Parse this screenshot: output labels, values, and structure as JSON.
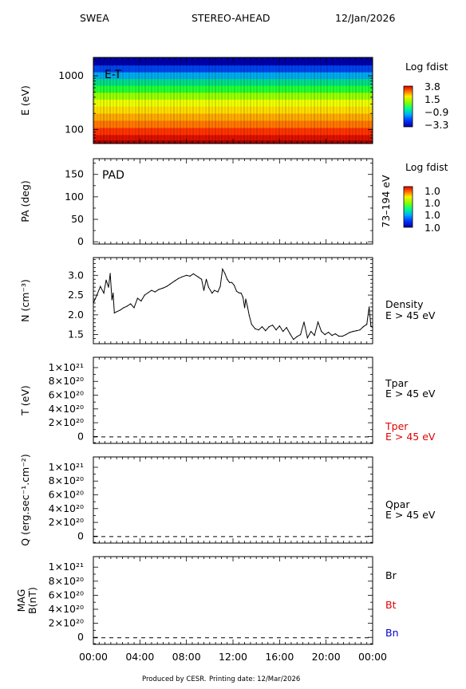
{
  "header": {
    "instrument": "SWEA",
    "spacecraft": "STEREO-AHEAD",
    "date": "12/Jan/2026"
  },
  "footer": {
    "produced_by": "Produced by CESR.",
    "printing_date": "Printing date: 12/Mar/2026"
  },
  "colors": {
    "black": "#000000",
    "tper": "#e00000",
    "bt": "#e00000",
    "bn": "#0000cc"
  },
  "time_axis": {
    "ticks": [
      "00:00",
      "04:00",
      "08:00",
      "12:00",
      "16:00",
      "20:00",
      "00:00"
    ],
    "range_hours": [
      0,
      24
    ]
  },
  "chart_data": [
    {
      "type": "heatmap",
      "panel": "E-T",
      "label": "E-T",
      "ylabel": "E (eV)",
      "yscale": "log",
      "ylim": [
        55,
        2200
      ],
      "yticks": [
        "1000",
        "100"
      ],
      "colorbar": {
        "title": "Log fdist",
        "ticks": [
          "3.8",
          "1.5",
          "−0.9",
          "−3.3"
        ]
      },
      "energy_bands": [
        {
          "energy_ev": 1800,
          "color": "#0000aa"
        },
        {
          "energy_ev": 1350,
          "color": "#0044ee"
        },
        {
          "energy_ev": 1000,
          "color": "#00aaee"
        },
        {
          "energy_ev": 760,
          "color": "#00dd88"
        },
        {
          "energy_ev": 560,
          "color": "#22ff33"
        },
        {
          "energy_ev": 420,
          "color": "#99ff00"
        },
        {
          "energy_ev": 310,
          "color": "#eeff00"
        },
        {
          "energy_ev": 230,
          "color": "#ffdd00"
        },
        {
          "energy_ev": 170,
          "color": "#ffaa00"
        },
        {
          "energy_ev": 125,
          "color": "#ff7700"
        },
        {
          "energy_ev": 92,
          "color": "#ff3300"
        },
        {
          "energy_ev": 68,
          "color": "#dd1100"
        },
        {
          "energy_ev": 58,
          "color": "#aa0000"
        }
      ]
    },
    {
      "type": "heatmap",
      "panel": "PAD",
      "label": "PAD",
      "ylabel": "PA (deg)",
      "ylim": [
        -5,
        185
      ],
      "yticks": [
        "150",
        "100",
        "50",
        "0"
      ],
      "right_label": "73–194 eV",
      "colorbar": {
        "title": "Log fdist",
        "ticks": [
          "1.0",
          "1.0",
          "1.0",
          "1.0"
        ]
      }
    },
    {
      "type": "line",
      "panel": "Density",
      "ylabel": "N (cm⁻³)",
      "ylim": [
        1.27,
        3.45
      ],
      "yticks": [
        "3.0",
        "2.5",
        "2.0",
        "1.5"
      ],
      "series": [
        {
          "name": "Density E > 45 eV",
          "x": [
            0,
            0.3,
            0.6,
            0.9,
            1.1,
            1.3,
            1.45,
            1.6,
            1.7,
            1.8,
            2.0,
            2.3,
            2.6,
            2.9,
            3.2,
            3.5,
            3.8,
            4.1,
            4.4,
            4.7,
            5.0,
            5.3,
            5.6,
            6.0,
            6.3,
            6.6,
            7.0,
            7.3,
            7.6,
            8.0,
            8.3,
            8.6,
            9.0,
            9.3,
            9.5,
            9.7,
            9.9,
            10.2,
            10.4,
            10.7,
            10.9,
            11.1,
            11.3,
            11.5,
            11.7,
            11.9,
            12.1,
            12.3,
            12.5,
            12.7,
            12.85,
            13.0,
            13.1,
            13.25,
            13.4,
            13.6,
            13.9,
            14.2,
            14.5,
            14.8,
            15.1,
            15.4,
            15.7,
            16.0,
            16.3,
            16.6,
            16.9,
            17.2,
            17.5,
            17.8,
            18.1,
            18.4,
            18.7,
            19.0,
            19.3,
            19.6,
            19.9,
            20.2,
            20.5,
            20.8,
            21.1,
            21.4,
            21.7,
            22.0,
            22.3,
            22.6,
            22.9,
            23.2,
            23.5,
            23.7,
            23.85,
            24.0
          ],
          "y": [
            2.3,
            2.5,
            2.72,
            2.55,
            2.88,
            2.7,
            3.05,
            2.38,
            2.55,
            2.05,
            2.08,
            2.12,
            2.18,
            2.22,
            2.28,
            2.18,
            2.42,
            2.35,
            2.5,
            2.56,
            2.62,
            2.58,
            2.64,
            2.68,
            2.72,
            2.78,
            2.86,
            2.92,
            2.96,
            3.0,
            2.98,
            3.04,
            2.96,
            2.9,
            2.62,
            2.9,
            2.7,
            2.55,
            2.62,
            2.58,
            2.72,
            3.16,
            3.05,
            2.9,
            2.82,
            2.82,
            2.75,
            2.6,
            2.56,
            2.55,
            2.45,
            2.18,
            2.4,
            2.2,
            1.98,
            1.76,
            1.65,
            1.62,
            1.7,
            1.6,
            1.7,
            1.74,
            1.62,
            1.72,
            1.58,
            1.68,
            1.52,
            1.38,
            1.45,
            1.5,
            1.82,
            1.42,
            1.58,
            1.48,
            1.82,
            1.58,
            1.5,
            1.56,
            1.48,
            1.52,
            1.46,
            1.46,
            1.5,
            1.55,
            1.58,
            1.6,
            1.62,
            1.7,
            1.76,
            2.2,
            1.72,
            1.68
          ]
        }
      ],
      "right_label": [
        "Density",
        "E > 45 eV"
      ]
    },
    {
      "type": "line",
      "panel": "Temperature",
      "ylabel": "T (eV)",
      "ylim": [
        -100000000000000000000,
        1150000000000000000000
      ],
      "yticks": [
        "1×10²¹",
        "8×10²⁰",
        "6×10²⁰",
        "4×10²⁰",
        "2×10²⁰",
        "0"
      ],
      "zero_line": "dashed",
      "right_labels": [
        {
          "text": "Tpar",
          "color": "#000000"
        },
        {
          "text": "E > 45 eV",
          "color": "#000000"
        },
        {
          "text": "Tper",
          "color": "#e00000"
        },
        {
          "text": "E > 45 eV",
          "color": "#e00000"
        }
      ]
    },
    {
      "type": "line",
      "panel": "HeatFlux",
      "ylabel": "Q (erg.sec⁻¹.cm⁻²)",
      "ylim": [
        -100000000000000000000,
        1150000000000000000000
      ],
      "yticks": [
        "1×10²¹",
        "8×10²⁰",
        "6×10²⁰",
        "4×10²⁰",
        "2×10²⁰",
        "0"
      ],
      "zero_line": "dashed",
      "right_labels": [
        {
          "text": "Qpar",
          "color": "#000000"
        },
        {
          "text": "E > 45 eV",
          "color": "#000000"
        }
      ]
    },
    {
      "type": "line",
      "panel": "MAG",
      "ylabel": [
        "MAG",
        "B(nT)"
      ],
      "ylim": [
        -100000000000000000000,
        1150000000000000000000
      ],
      "yticks": [
        "1×10²¹",
        "8×10²⁰",
        "6×10²⁰",
        "4×10²⁰",
        "2×10²⁰",
        "0"
      ],
      "zero_line": "dashed",
      "right_labels": [
        {
          "text": "Br",
          "color": "#000000"
        },
        {
          "text": "Bt",
          "color": "#e00000"
        },
        {
          "text": "Bn",
          "color": "#0000cc"
        }
      ]
    }
  ]
}
